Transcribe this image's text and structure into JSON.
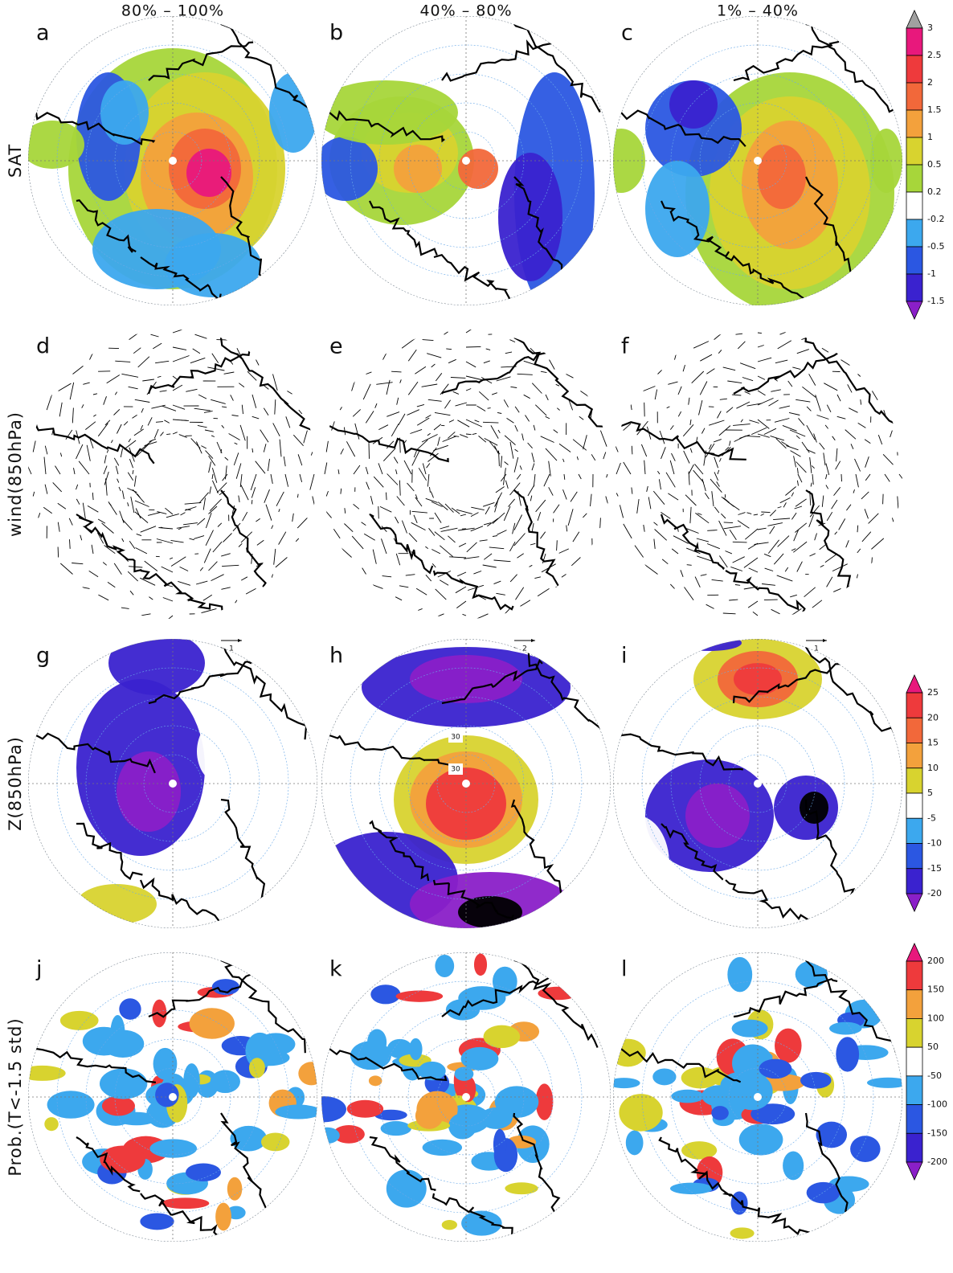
{
  "columns": [
    "80%  –  100%",
    "40%  –  80%",
    "1%   –  40%"
  ],
  "rows": [
    {
      "label": "SAT",
      "panels": [
        "a",
        "b",
        "c"
      ]
    },
    {
      "label": "wind(850hPa)",
      "panels": [
        "d",
        "e",
        "f"
      ],
      "reference_vectors": [
        "1",
        "2",
        "1"
      ]
    },
    {
      "label": "Z(850hPa)",
      "panels": [
        "g",
        "h",
        "i"
      ],
      "contour_labels": [
        "30",
        "30"
      ]
    },
    {
      "label": "Prob.(T<-1.5 std)",
      "panels": [
        "j",
        "k",
        "l"
      ]
    }
  ],
  "colorbars": [
    {
      "ticks": [
        3,
        2.5,
        2,
        1.5,
        1,
        0.5,
        0.2,
        -0.2,
        -0.5,
        -1,
        -1.5
      ],
      "colors": [
        "#a0a0a0",
        "#e8187c",
        "#ee3a3c",
        "#f2683a",
        "#f3a13c",
        "#d8d32f",
        "#a7d63a",
        "#ffffff",
        "#3ca8ee",
        "#2b57e2",
        "#3a22cf",
        "#8a1fc8"
      ]
    },
    {
      "ticks": [
        25,
        20,
        15,
        10,
        5,
        -5,
        -10,
        -15,
        -20
      ],
      "colors": [
        "#e8187c",
        "#ee3a3c",
        "#f2683a",
        "#f3a13c",
        "#d8d32f",
        "#ffffff",
        "#3ca8ee",
        "#2b57e2",
        "#3a22cf",
        "#8a1fc8"
      ]
    },
    {
      "ticks": [
        200,
        150,
        100,
        50,
        -50,
        -100,
        -150,
        -200
      ],
      "colors": [
        "#e8187c",
        "#ee3a3c",
        "#f3a13c",
        "#d8d32f",
        "#ffffff",
        "#3ca8ee",
        "#2b57e2",
        "#3a22cf",
        "#8a1fc8"
      ]
    }
  ]
}
